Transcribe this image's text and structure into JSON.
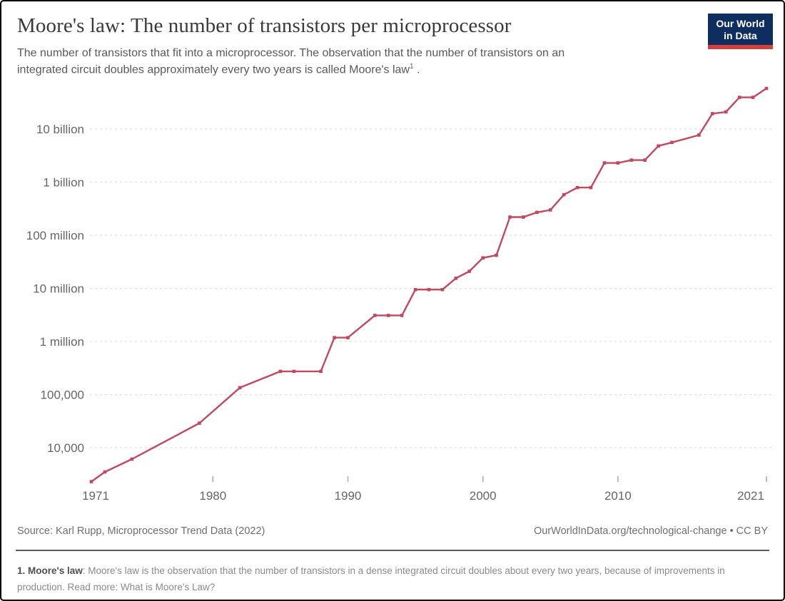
{
  "header": {
    "title": "Moore's law: The number of transistors per microprocessor",
    "subtitle_line1": "The number of transistors that fit into a microprocessor. The observation that the number of transistors on an",
    "subtitle_line2": "integrated circuit doubles approximately every two years is called Moore's law",
    "footnote_marker": "1",
    "subtitle_tail": " .",
    "logo": {
      "line1": "Our World",
      "line2": "in Data",
      "bg_color": "#0d2e5f",
      "stripe_color": "#d63e3c"
    }
  },
  "footer": {
    "source": "Source: Karl Rupp, Microprocessor Trend Data (2022)",
    "link": "OurWorldInData.org/technological-change",
    "license": " • CC BY"
  },
  "note": {
    "label": "1. Moore's law",
    "body": ": Moore's law is the observation that the number of transistors in a dense integrated circuit doubles about every two years, because of improvements in production. Read more: ",
    "read_more_link": "What is Moore's Law?"
  },
  "chart_data": {
    "type": "line",
    "title": "Transistors per microprocessor",
    "series_name": "Transistors per microprocessor",
    "xlabel": "",
    "ylabel": "",
    "yscale": "log",
    "grid": "horizontal-dashed",
    "legend": "none",
    "line_color": "#c2485f",
    "grid_color": "#dfdfdf",
    "axis_label_color": "#666666",
    "xlim": [
      1970.5,
      2022
    ],
    "ylim": [
      2000,
      70000000000
    ],
    "x_ticks": [
      1971,
      1980,
      1990,
      2000,
      2010,
      2021
    ],
    "y_ticks": [
      {
        "label": "10 billion",
        "value": 10000000000
      },
      {
        "label": "1 billion",
        "value": 1000000000
      },
      {
        "label": "100 million",
        "value": 100000000
      },
      {
        "label": "10 million",
        "value": 10000000
      },
      {
        "label": "1 million",
        "value": 1000000
      },
      {
        "label": "100,000",
        "value": 100000
      },
      {
        "label": "10,000",
        "value": 10000
      }
    ],
    "x": [
      1971,
      1972,
      1974,
      1979,
      1982,
      1985,
      1986,
      1988,
      1989,
      1990,
      1992,
      1993,
      1994,
      1995,
      1996,
      1997,
      1998,
      1999,
      2000,
      2001,
      2002,
      2003,
      2004,
      2005,
      2006,
      2007,
      2008,
      2009,
      2010,
      2011,
      2012,
      2013,
      2014,
      2016,
      2017,
      2018,
      2019,
      2020,
      2021
    ],
    "values": [
      2300,
      3500,
      6100,
      29000,
      135000,
      274000,
      274000,
      274000,
      1180000,
      1180000,
      3100000,
      3100000,
      3100000,
      9500000,
      9500000,
      9500000,
      15500000,
      21000000,
      37500000,
      42000000,
      220000000,
      220000000,
      270000000,
      300000000,
      580000000,
      790000000,
      790000000,
      2300000000,
      2300000000,
      2600000000,
      2600000000,
      4800000000,
      5600000000,
      7700000000,
      19500000000,
      21000000000,
      39500000000,
      39500000000,
      58200000000
    ]
  }
}
